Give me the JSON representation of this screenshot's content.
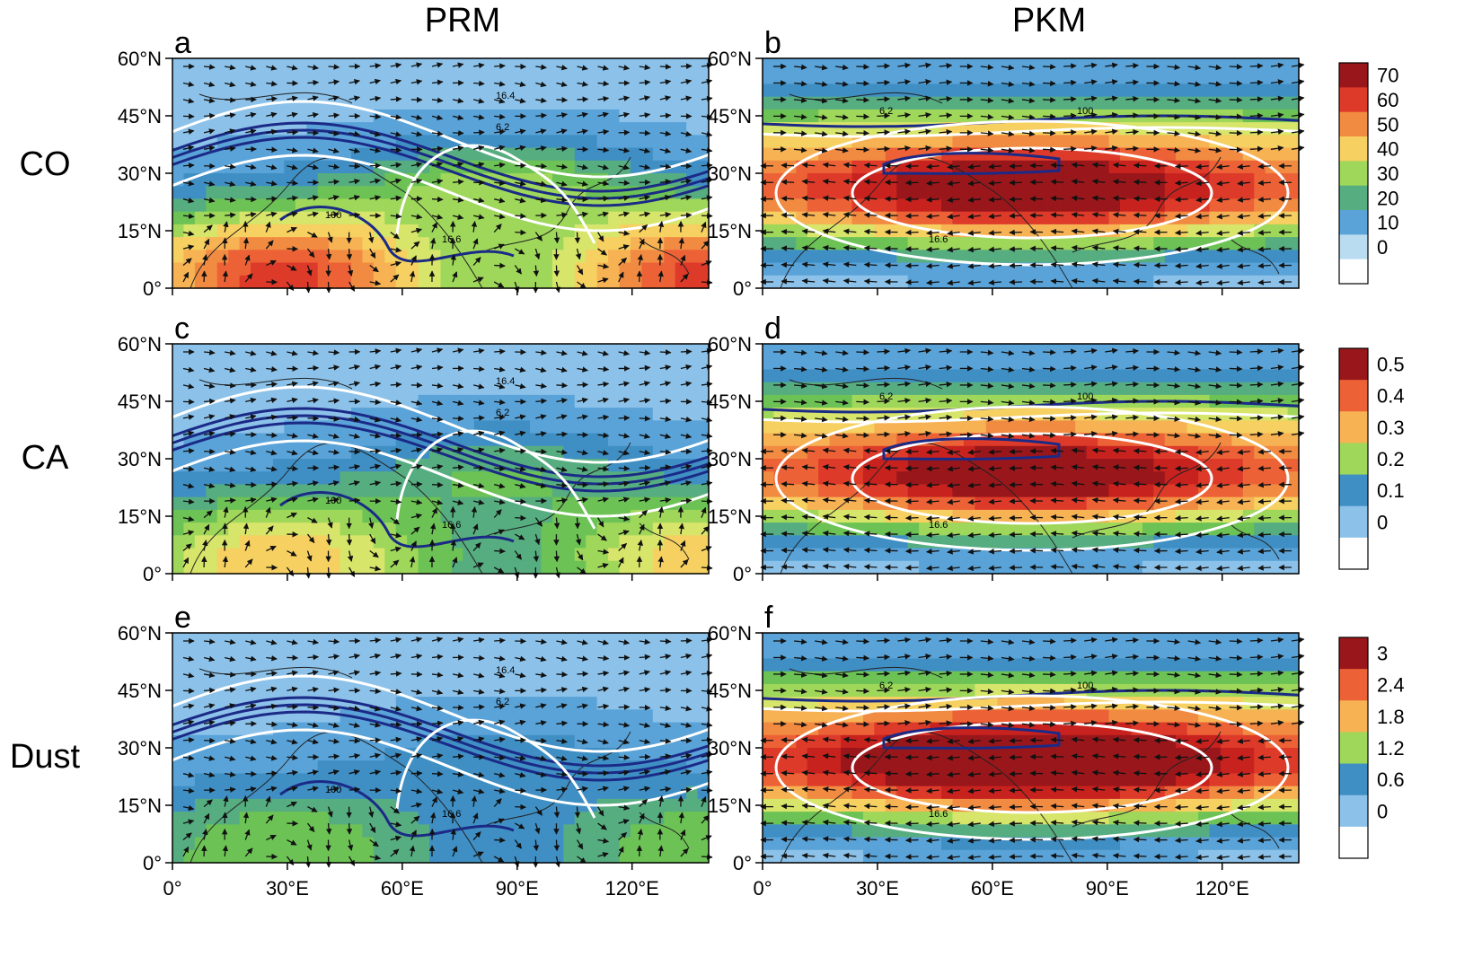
{
  "figure": {
    "column_titles": [
      "PRM",
      "PKM"
    ],
    "row_titles": [
      "CO",
      "CA",
      "Dust"
    ]
  },
  "axes": {
    "lat_ticks": [
      "60°N",
      "45°N",
      "30°N",
      "15°N",
      "0°"
    ],
    "lon_ticks": [
      "0°",
      "30°E",
      "60°E",
      "90°E",
      "120°E"
    ]
  },
  "colors": {
    "scale": [
      "#ffffff",
      "#e3f2fb",
      "#b9dcf1",
      "#8cc2e9",
      "#5aa3d8",
      "#3f8fc4",
      "#56ad80",
      "#6cc254",
      "#9ed75a",
      "#d7e56a",
      "#f6d060",
      "#f7b254",
      "#f28b42",
      "#ec6236",
      "#dd3a2a",
      "#c8221f",
      "#99171b"
    ],
    "tropopause_contour": "#1b2a86",
    "isoline": "#ffffff",
    "wind_vector": "#111111",
    "coastline": "#222222"
  },
  "chart_data": [
    {
      "panel": "a",
      "column": "PRM",
      "row": "CO",
      "type": "heatmap",
      "pattern": "prm",
      "strength": 0.75,
      "contour_labels": [
        "16.4",
        "16.6",
        "6.2",
        "100"
      ]
    },
    {
      "panel": "b",
      "column": "PKM",
      "row": "CO",
      "type": "heatmap",
      "pattern": "pkm",
      "strength": 0.9,
      "contour_labels": [
        "16.6",
        "6.2",
        "100"
      ],
      "colorbar": {
        "ticks": [
          "70",
          "60",
          "50",
          "40",
          "30",
          "20",
          "10",
          "0"
        ],
        "max": 75
      }
    },
    {
      "panel": "c",
      "column": "PRM",
      "row": "CA",
      "type": "heatmap",
      "pattern": "prm",
      "strength": 0.5,
      "contour_labels": [
        "16.4",
        "16.6",
        "6.2",
        "100"
      ]
    },
    {
      "panel": "d",
      "column": "PKM",
      "row": "CA",
      "type": "heatmap",
      "pattern": "pkm",
      "strength": 0.88,
      "contour_labels": [
        "16.6",
        "6.2",
        "100"
      ],
      "colorbar": {
        "ticks": [
          "0.5",
          "0.4",
          "0.3",
          "0.2",
          "0.1",
          "0"
        ],
        "max": 0.55
      }
    },
    {
      "panel": "e",
      "column": "PRM",
      "row": "Dust",
      "type": "heatmap",
      "pattern": "prm",
      "strength": 0.3,
      "contour_labels": [
        "16.4",
        "16.6",
        "6.2",
        "100"
      ]
    },
    {
      "panel": "f",
      "column": "PKM",
      "row": "Dust",
      "type": "heatmap",
      "pattern": "pkm",
      "strength": 1.0,
      "contour_labels": [
        "16.6",
        "6.2",
        "100"
      ],
      "colorbar": {
        "ticks": [
          "3",
          "2.4",
          "1.8",
          "1.2",
          "0.6",
          "0"
        ],
        "max": 3.5
      }
    }
  ]
}
